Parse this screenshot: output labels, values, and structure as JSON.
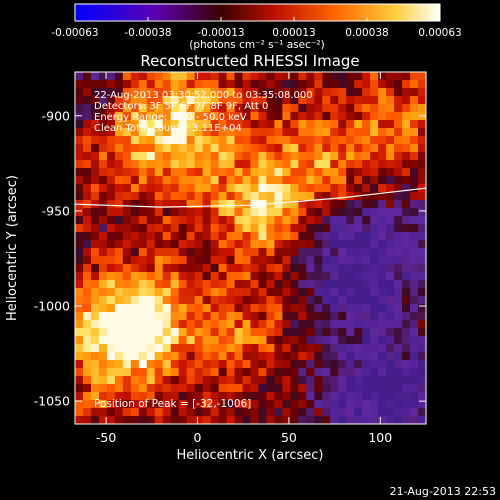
{
  "chart_data": {
    "type": "heatmap",
    "title": "Reconstructed RHESSI Image",
    "xlabel": "Heliocentric X (arcsec)",
    "ylabel": "Heliocentric Y (arcsec)",
    "xlim": [
      -67,
      125
    ],
    "ylim": [
      -1062,
      -877
    ],
    "x_ticks": [
      -50,
      0,
      50,
      100
    ],
    "y_ticks": [
      -900,
      -950,
      -1000,
      -1050
    ],
    "colorbar": {
      "range": [
        -0.00063,
        0.00063
      ],
      "ticks": [
        "-0.00063",
        "-0.00038",
        "-0.00013",
        "0.00013",
        "0.00038",
        "0.00063"
      ],
      "unit_label": "(photons cm⁻² s⁻¹ asec⁻²)"
    },
    "annotations": [
      "22-Aug-2013 03:30:52.000 to 03:35:08.000",
      "Detectors: 3F 5F 6F 7F 8F 9F, Att 0",
      "Energy Range: 25.0 - 50.0 keV",
      "Clean     Total counts: 3.11E+04"
    ],
    "peak_label": "Position of Peak = [-32,-1006]",
    "peak": {
      "x": -32,
      "y": -1006
    },
    "limb_points": [
      [
        -67,
        -946.5
      ],
      [
        -20,
        -948
      ],
      [
        30,
        -947
      ],
      [
        80,
        -943
      ],
      [
        125,
        -938
      ]
    ],
    "bright_sources": [
      {
        "x": -32,
        "y": -1006,
        "strength": 1.0,
        "sigma": 18
      },
      {
        "x": -52,
        "y": -1025,
        "strength": 0.55,
        "sigma": 22
      },
      {
        "x": 35,
        "y": -950,
        "strength": 0.8,
        "sigma": 18
      },
      {
        "x": 70,
        "y": -925,
        "strength": 0.55,
        "sigma": 20
      },
      {
        "x": -5,
        "y": -905,
        "strength": 0.6,
        "sigma": 25
      },
      {
        "x": -35,
        "y": -905,
        "strength": 0.5,
        "sigma": 22
      },
      {
        "x": 25,
        "y": -1010,
        "strength": 0.45,
        "sigma": 22
      },
      {
        "x": 110,
        "y": -905,
        "strength": 0.45,
        "sigma": 18
      }
    ],
    "dim_regions": [
      {
        "x": 90,
        "y": -975,
        "strength": 0.7,
        "sigma": 28
      },
      {
        "x": 100,
        "y": -1048,
        "strength": 0.8,
        "sigma": 22
      },
      {
        "x": -55,
        "y": -890,
        "strength": 0.45,
        "sigma": 18
      }
    ]
  },
  "footer_timestamp": "21-Aug-2013 22:53"
}
